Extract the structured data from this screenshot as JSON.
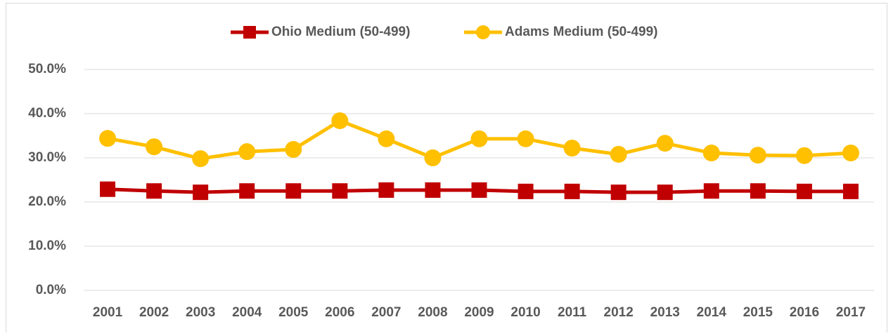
{
  "chart_data": {
    "type": "line",
    "categories": [
      "2001",
      "2002",
      "2003",
      "2004",
      "2005",
      "2006",
      "2007",
      "2008",
      "2009",
      "2010",
      "2011",
      "2012",
      "2013",
      "2014",
      "2015",
      "2016",
      "2017"
    ],
    "series": [
      {
        "name": "Ohio Medium (50-499)",
        "color": "#c00000",
        "marker": "square",
        "values": [
          22.9,
          22.5,
          22.2,
          22.5,
          22.5,
          22.5,
          22.7,
          22.7,
          22.7,
          22.4,
          22.4,
          22.2,
          22.2,
          22.5,
          22.5,
          22.4,
          22.4
        ]
      },
      {
        "name": "Adams Medium (50-499)",
        "color": "#ffc000",
        "marker": "circle",
        "values": [
          34.4,
          32.5,
          29.8,
          31.4,
          31.9,
          38.4,
          34.3,
          30.0,
          34.3,
          34.3,
          32.2,
          30.8,
          33.3,
          31.1,
          30.6,
          30.5,
          31.1
        ]
      }
    ],
    "ylim": [
      0,
      50
    ],
    "yticks": [
      {
        "value": 0,
        "label": "0.0%"
      },
      {
        "value": 10,
        "label": "10.0%"
      },
      {
        "value": 20,
        "label": "20.0%"
      },
      {
        "value": 30,
        "label": "30.0%"
      },
      {
        "value": 40,
        "label": "40.0%"
      },
      {
        "value": 50,
        "label": "50.0%"
      }
    ],
    "grid": true,
    "legend": "top"
  }
}
